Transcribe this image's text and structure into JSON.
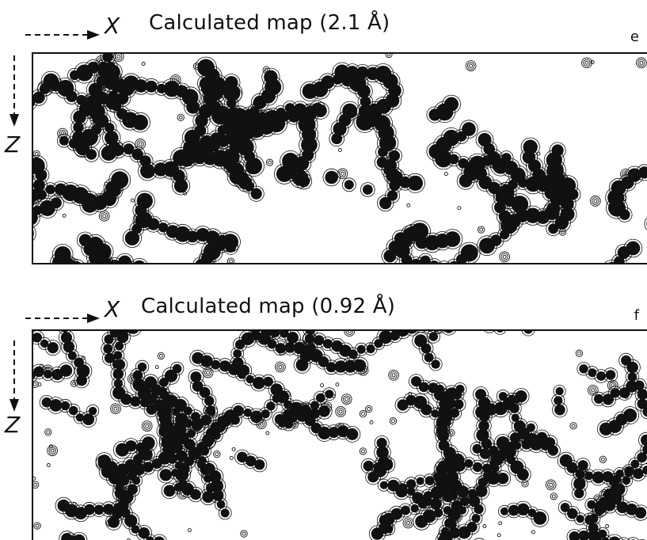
{
  "panels": [
    {
      "id": "e",
      "title": "Calculated map (2.1 Å)",
      "panel_label": "e",
      "x_axis_label": "X",
      "z_axis_label": "Z"
    },
    {
      "id": "f",
      "title": "Calculated map (0.92 Å)",
      "panel_label": "f",
      "x_axis_label": "X",
      "z_axis_label": "Z"
    }
  ],
  "colors": {
    "ink": "#111111",
    "background": "#ffffff"
  }
}
